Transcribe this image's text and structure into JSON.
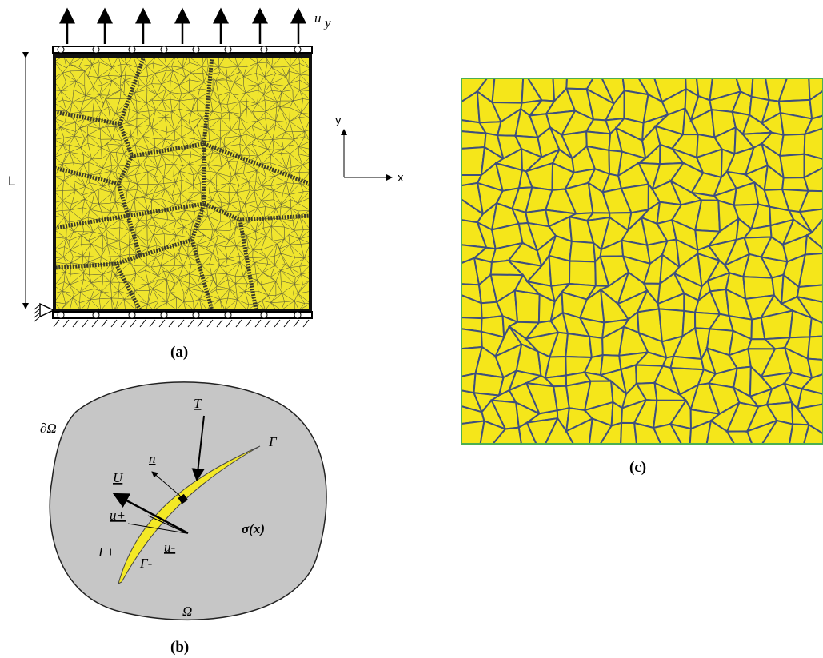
{
  "panel_a": {
    "load_label": "u",
    "load_subscript": "y",
    "length_label": "L",
    "axis_y": "y",
    "axis_x": "x",
    "caption": "(a)"
  },
  "panel_b": {
    "boundary": "∂Ω",
    "traction": "T",
    "normal": "n",
    "jump": "U",
    "u_plus": "u+",
    "u_minus": "u-",
    "crack": "Γ",
    "crack_plus": "Γ+",
    "crack_minus": "Γ-",
    "stress": "σ(x)",
    "domain": "Ω",
    "caption": "(b)"
  },
  "panel_c": {
    "caption": "(c)"
  }
}
